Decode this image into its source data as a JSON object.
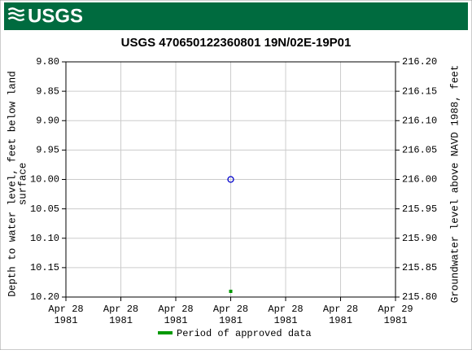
{
  "header": {
    "logo": "USGS"
  },
  "chart_data": {
    "type": "scatter",
    "title": "USGS 470650122360801 19N/02E-19P01",
    "y_label": [
      "Depth to water level, feet below land",
      "surface"
    ],
    "y2_label": "Groundwater level above NAVD 1988, feet",
    "categories": [
      "Apr 28\n1981",
      "Apr 28\n1981",
      "Apr 28\n1981",
      "Apr 28\n1981",
      "Apr 28\n1981",
      "Apr 28\n1981",
      "Apr 29\n1981"
    ],
    "values": [
      null,
      null,
      null,
      10,
      null,
      null,
      null
    ],
    "color": "#0000cc",
    "ylim": [
      9.8,
      10.2
    ],
    "y_inverted": true,
    "yticks": [
      {
        "value": 9.8,
        "label": "9.80"
      },
      9.85,
      {
        "value": 9.9,
        "label": "9.90"
      },
      9.95,
      {
        "value": 10,
        "label": "10.00"
      },
      10.05,
      {
        "value": 10.1,
        "label": "10.10"
      },
      10.15,
      {
        "value": 10.2,
        "label": "10.20"
      }
    ],
    "y2lim": [
      215.8,
      216.2
    ],
    "y2ticks": [
      {
        "value": 216.2,
        "label": "216.20"
      },
      216.15,
      {
        "value": 216.1,
        "label": "216.10"
      },
      216.05,
      {
        "value": 216,
        "label": "216.00"
      },
      215.95,
      {
        "value": 215.9,
        "label": "215.90"
      },
      215.85,
      {
        "value": 215.8,
        "label": "215.80"
      }
    ],
    "grid": true,
    "legend": {
      "name": "Period of approved data",
      "color": "#009900"
    }
  }
}
